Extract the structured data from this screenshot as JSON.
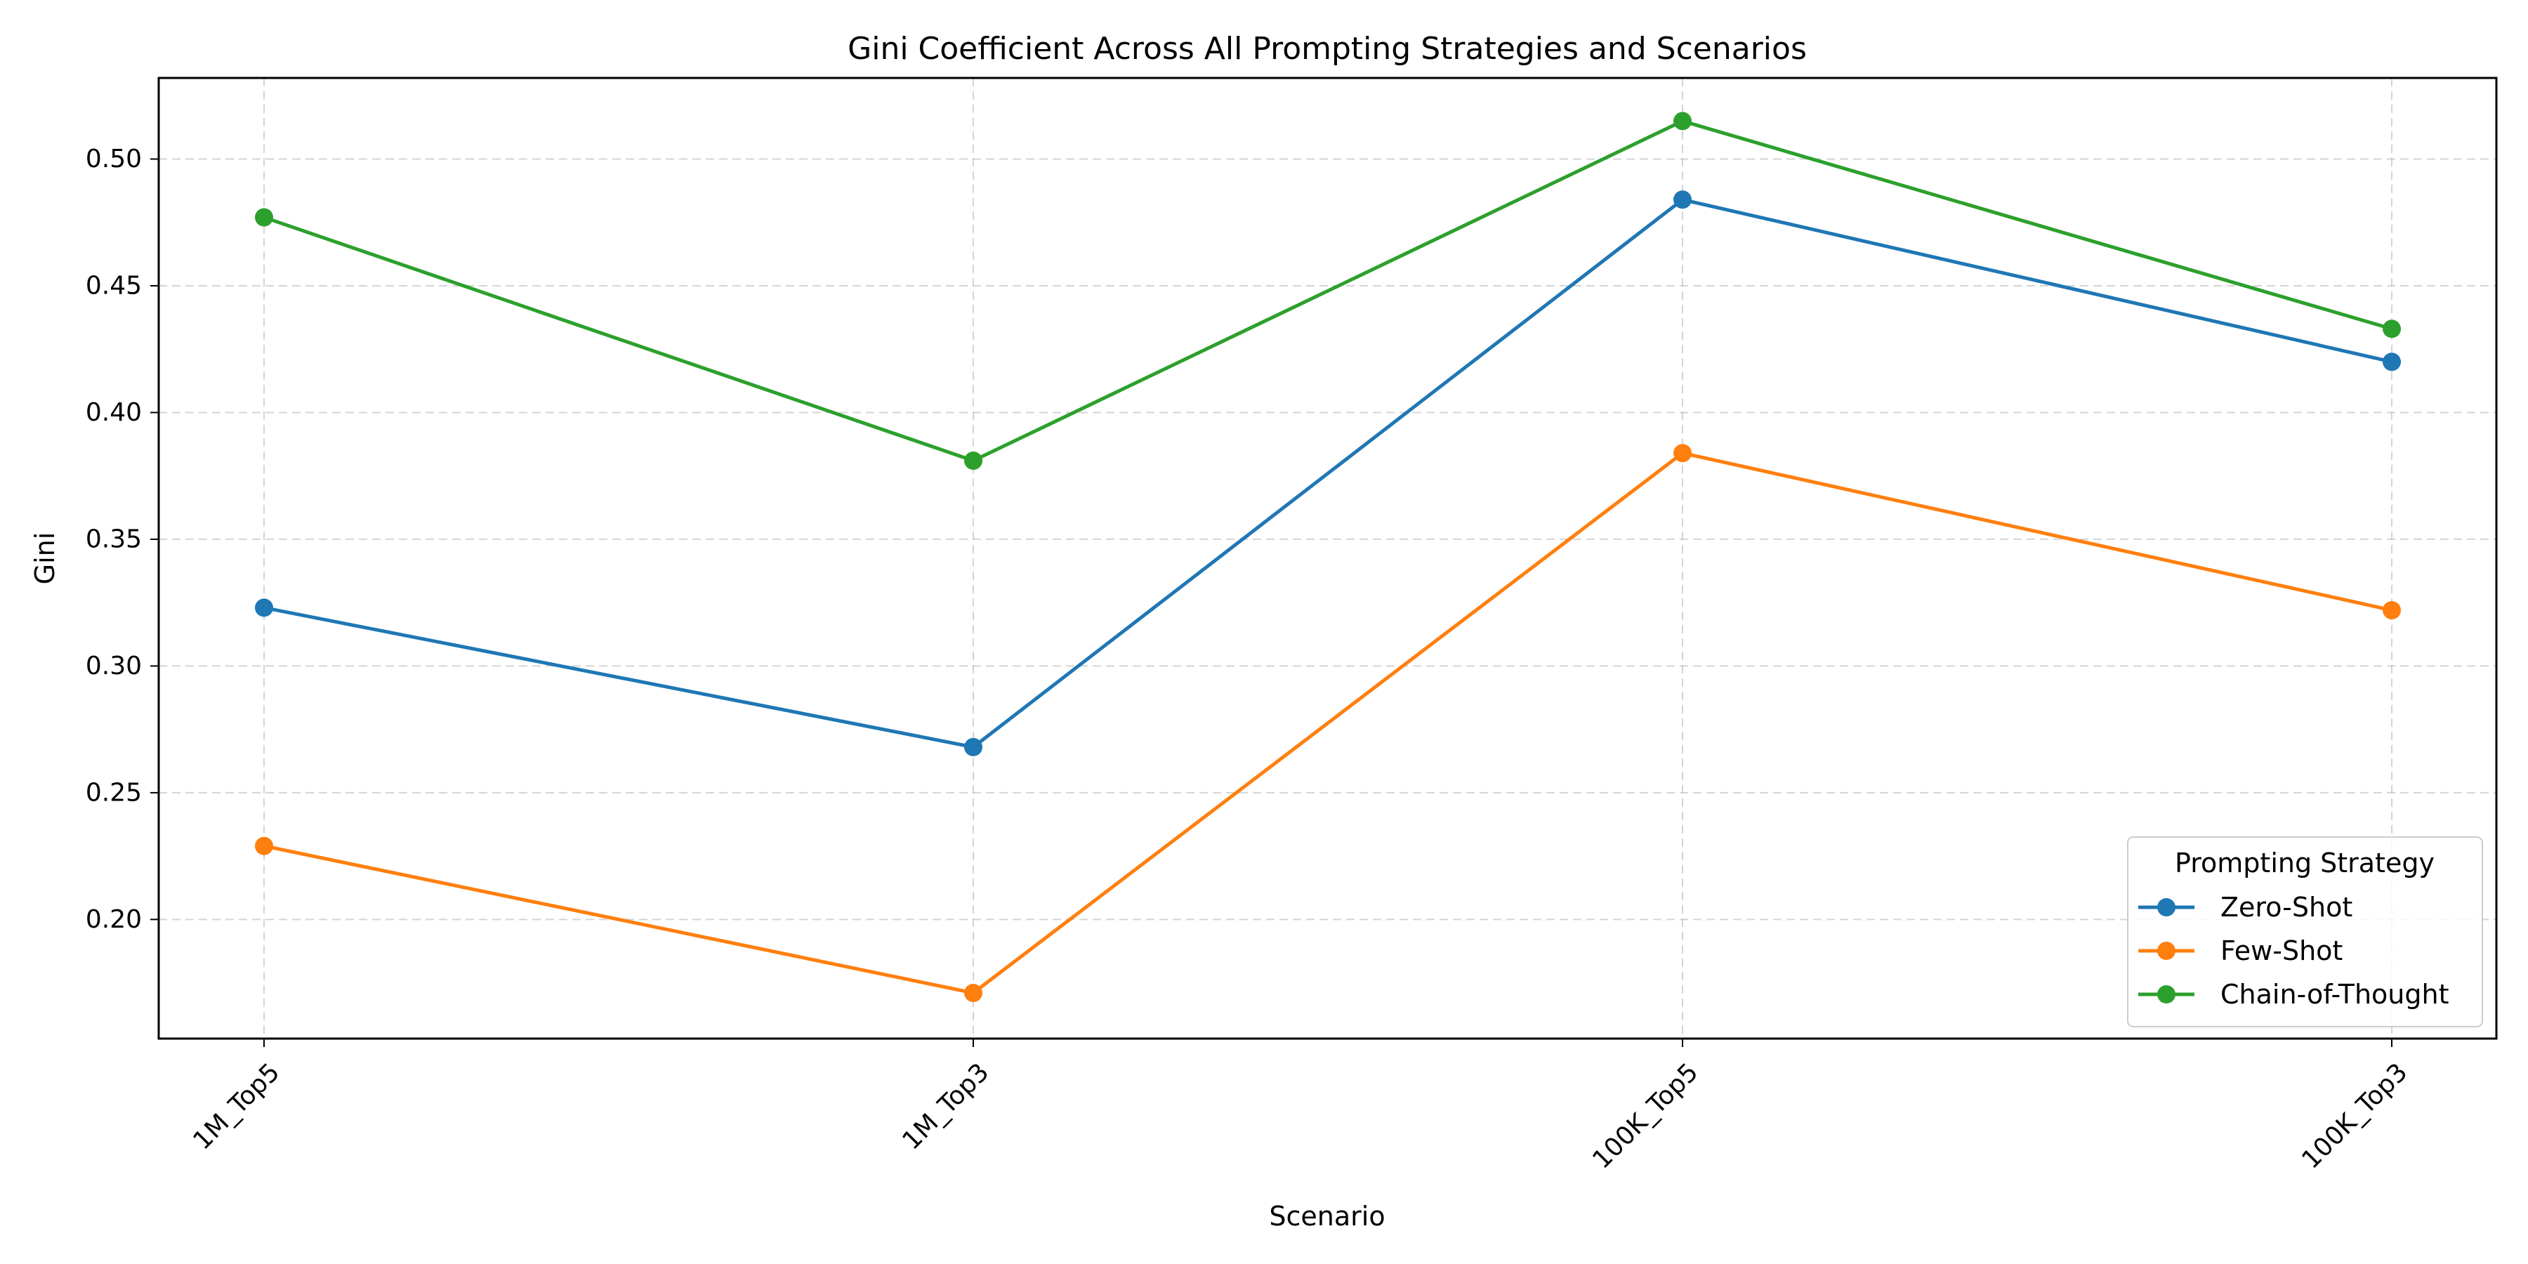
{
  "chart_data": {
    "type": "line",
    "title": "Gini Coefficient Across All Prompting Strategies and Scenarios",
    "xlabel": "Scenario",
    "ylabel": "Gini",
    "categories": [
      "1M_Top5",
      "1M_Top3",
      "100K_Top5",
      "100K_Top3"
    ],
    "ylim": [
      0.153,
      0.532
    ],
    "yticks": [
      0.2,
      0.25,
      0.3,
      0.35,
      0.4,
      0.45,
      0.5
    ],
    "ytick_labels": [
      "0.20",
      "0.25",
      "0.30",
      "0.35",
      "0.40",
      "0.45",
      "0.50"
    ],
    "grid": true,
    "legend": {
      "title": "Prompting Strategy",
      "position": "lower-right"
    },
    "series": [
      {
        "name": "Zero-Shot",
        "color": "#1f77b4",
        "values": [
          0.323,
          0.268,
          0.484,
          0.42
        ]
      },
      {
        "name": "Few-Shot",
        "color": "#ff7f0e",
        "values": [
          0.229,
          0.171,
          0.384,
          0.322
        ]
      },
      {
        "name": "Chain-of-Thought",
        "color": "#2ca02c",
        "values": [
          0.477,
          0.381,
          0.515,
          0.433
        ]
      }
    ]
  }
}
